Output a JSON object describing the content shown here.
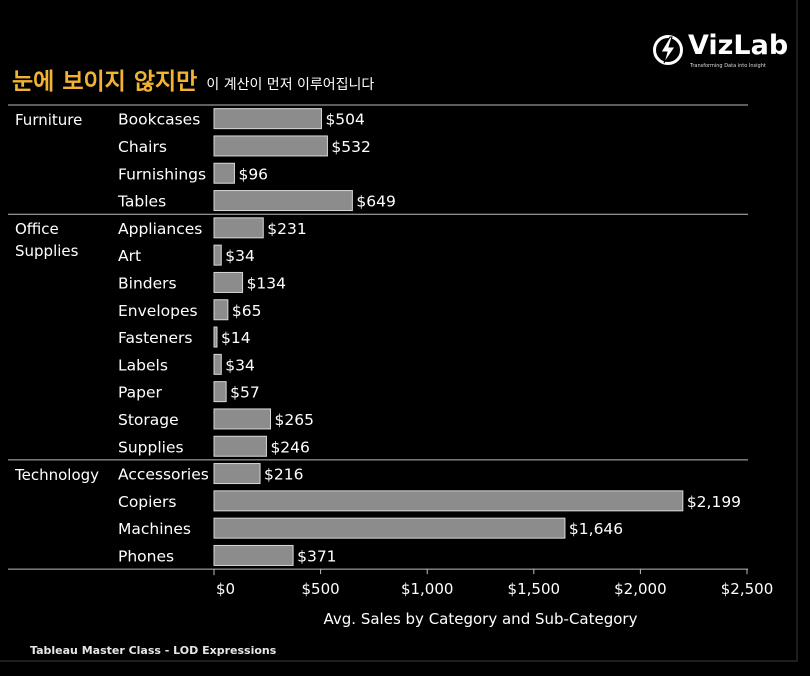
{
  "header": {
    "title_main": "눈에 보이지 않지만",
    "title_sub": "이 계산이 먼저 이루어집니다"
  },
  "logo": {
    "name": "VizLab",
    "tagline": "Transforming Data into Insight",
    "icon": "lightning-bolt-icon"
  },
  "footer": {
    "text": "Tableau Master Class - LOD Expressions"
  },
  "colors": {
    "bar": "#8c8c8c",
    "bar_stroke": "#d8d8d8",
    "title": "#f2b233",
    "background": "#000000"
  },
  "chart_data": {
    "type": "bar",
    "orientation": "horizontal",
    "xlabel": "Avg. Sales by Category and Sub-Category",
    "xlim": [
      0,
      2500
    ],
    "ticks": [
      0,
      500,
      1000,
      1500,
      2000,
      2500
    ],
    "tick_labels": [
      "$0",
      "$500",
      "$1,000",
      "$1,500",
      "$2,000",
      "$2,500"
    ],
    "groups": [
      {
        "name_lines": [
          "Furniture"
        ],
        "items": [
          {
            "name": "Bookcases",
            "value": 504,
            "label": "$504"
          },
          {
            "name": "Chairs",
            "value": 532,
            "label": "$532"
          },
          {
            "name": "Furnishings",
            "value": 96,
            "label": "$96"
          },
          {
            "name": "Tables",
            "value": 649,
            "label": "$649"
          }
        ]
      },
      {
        "name_lines": [
          "Office",
          "Supplies"
        ],
        "items": [
          {
            "name": "Appliances",
            "value": 231,
            "label": "$231"
          },
          {
            "name": "Art",
            "value": 34,
            "label": "$34"
          },
          {
            "name": "Binders",
            "value": 134,
            "label": "$134"
          },
          {
            "name": "Envelopes",
            "value": 65,
            "label": "$65"
          },
          {
            "name": "Fasteners",
            "value": 14,
            "label": "$14"
          },
          {
            "name": "Labels",
            "value": 34,
            "label": "$34"
          },
          {
            "name": "Paper",
            "value": 57,
            "label": "$57"
          },
          {
            "name": "Storage",
            "value": 265,
            "label": "$265"
          },
          {
            "name": "Supplies",
            "value": 246,
            "label": "$246"
          }
        ]
      },
      {
        "name_lines": [
          "Technology"
        ],
        "items": [
          {
            "name": "Accessories",
            "value": 216,
            "label": "$216"
          },
          {
            "name": "Copiers",
            "value": 2199,
            "label": "$2,199"
          },
          {
            "name": "Machines",
            "value": 1646,
            "label": "$1,646"
          },
          {
            "name": "Phones",
            "value": 371,
            "label": "$371"
          }
        ]
      }
    ]
  }
}
